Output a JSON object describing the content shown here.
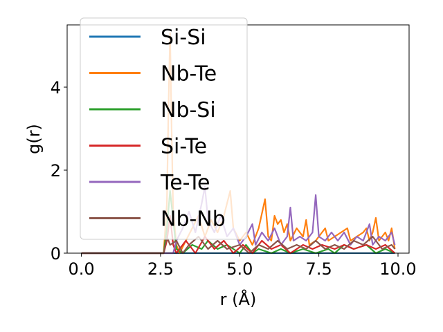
{
  "chart_data": {
    "type": "line",
    "xlabel": "r (Å)",
    "ylabel": "g(r)",
    "xlim": [
      -0.45,
      10.35
    ],
    "ylim": [
      0,
      5.5
    ],
    "xticks": [
      0.0,
      2.5,
      5.0,
      7.5,
      10.0
    ],
    "xtick_labels": [
      "0.0",
      "2.5",
      "5.0",
      "7.5",
      "10.0"
    ],
    "yticks": [
      0,
      2,
      4
    ],
    "ytick_labels": [
      "0",
      "2",
      "4"
    ],
    "grid": false,
    "legend_position": "upper-left",
    "series": [
      {
        "name": "Si-Si",
        "color": "#1f77b4",
        "points": [
          [
            0,
            0
          ],
          [
            2.7,
            0
          ],
          [
            3.0,
            0
          ],
          [
            3.5,
            0
          ],
          [
            4.0,
            0
          ],
          [
            4.5,
            0
          ],
          [
            5.0,
            0
          ],
          [
            5.5,
            0
          ],
          [
            6.0,
            0
          ],
          [
            6.5,
            0
          ],
          [
            7.0,
            0
          ],
          [
            7.5,
            0
          ],
          [
            8.0,
            0
          ],
          [
            8.5,
            0
          ],
          [
            9.0,
            0
          ],
          [
            9.5,
            0
          ],
          [
            9.9,
            0
          ]
        ]
      },
      {
        "name": "Nb-Te",
        "color": "#ff7f0e",
        "points": [
          [
            0,
            0
          ],
          [
            2.6,
            0
          ],
          [
            2.7,
            1.2
          ],
          [
            2.75,
            3.5
          ],
          [
            2.8,
            5.3
          ],
          [
            2.85,
            3.0
          ],
          [
            2.9,
            1.0
          ],
          [
            3.0,
            0.2
          ],
          [
            3.1,
            0
          ],
          [
            3.3,
            0.3
          ],
          [
            3.5,
            0.6
          ],
          [
            3.7,
            0.9
          ],
          [
            3.9,
            0.4
          ],
          [
            4.1,
            0.8
          ],
          [
            4.3,
            0.5
          ],
          [
            4.5,
            0.9
          ],
          [
            4.7,
            1.5
          ],
          [
            4.8,
            0.6
          ],
          [
            5.0,
            0.3
          ],
          [
            5.2,
            0.5
          ],
          [
            5.4,
            0.2
          ],
          [
            5.6,
            0.6
          ],
          [
            5.8,
            1.3
          ],
          [
            5.9,
            0.4
          ],
          [
            6.0,
            0.3
          ],
          [
            6.1,
            0.9
          ],
          [
            6.2,
            0.7
          ],
          [
            6.3,
            0.8
          ],
          [
            6.4,
            0.5
          ],
          [
            6.5,
            0.7
          ],
          [
            6.6,
            0.3
          ],
          [
            6.8,
            0.6
          ],
          [
            7.0,
            0.4
          ],
          [
            7.1,
            0.8
          ],
          [
            7.2,
            0.2
          ],
          [
            7.4,
            0.3
          ],
          [
            7.6,
            0.5
          ],
          [
            7.7,
            0.6
          ],
          [
            7.8,
            0.3
          ],
          [
            8.0,
            0.4
          ],
          [
            8.2,
            0.5
          ],
          [
            8.4,
            0.6
          ],
          [
            8.5,
            0.3
          ],
          [
            8.7,
            0.4
          ],
          [
            8.9,
            0.5
          ],
          [
            9.0,
            0.6
          ],
          [
            9.1,
            0.3
          ],
          [
            9.2,
            0.5
          ],
          [
            9.3,
            0.85
          ],
          [
            9.4,
            0.3
          ],
          [
            9.5,
            0.4
          ],
          [
            9.6,
            0.5
          ],
          [
            9.7,
            0.3
          ],
          [
            9.8,
            0.6
          ],
          [
            9.9,
            0.1
          ]
        ]
      },
      {
        "name": "Nb-Si",
        "color": "#2ca02c",
        "points": [
          [
            0,
            0
          ],
          [
            2.6,
            0
          ],
          [
            2.7,
            0.6
          ],
          [
            2.8,
            1.5
          ],
          [
            2.9,
            0.8
          ],
          [
            3.0,
            0.1
          ],
          [
            3.2,
            0
          ],
          [
            3.5,
            0.2
          ],
          [
            3.8,
            0.1
          ],
          [
            4.0,
            0.3
          ],
          [
            4.3,
            0.1
          ],
          [
            4.6,
            0.2
          ],
          [
            5.0,
            0
          ],
          [
            5.2,
            0.2
          ],
          [
            5.4,
            0
          ],
          [
            5.6,
            0.1
          ],
          [
            6.0,
            0
          ],
          [
            6.3,
            0.1
          ],
          [
            6.6,
            0
          ],
          [
            7.0,
            0.1
          ],
          [
            7.4,
            0
          ],
          [
            7.8,
            0.1
          ],
          [
            8.0,
            0
          ],
          [
            8.3,
            0.2
          ],
          [
            8.6,
            0.1
          ],
          [
            9.0,
            0.2
          ],
          [
            9.3,
            0
          ],
          [
            9.6,
            0.1
          ],
          [
            9.9,
            0
          ]
        ]
      },
      {
        "name": "Si-Te",
        "color": "#d62728",
        "points": [
          [
            0,
            0
          ],
          [
            2.6,
            0
          ],
          [
            2.7,
            0.3
          ],
          [
            2.8,
            0.9
          ],
          [
            2.9,
            0.2
          ],
          [
            3.0,
            0
          ],
          [
            3.3,
            0.3
          ],
          [
            3.6,
            0
          ],
          [
            3.9,
            0.4
          ],
          [
            4.2,
            0.1
          ],
          [
            4.5,
            0.3
          ],
          [
            4.8,
            0
          ],
          [
            5.1,
            0.2
          ],
          [
            5.4,
            0
          ],
          [
            5.7,
            0.3
          ],
          [
            6.0,
            0.1
          ],
          [
            6.3,
            0.2
          ],
          [
            6.6,
            0
          ],
          [
            7.0,
            0.2
          ],
          [
            7.3,
            0.1
          ],
          [
            7.6,
            0.2
          ],
          [
            8.0,
            0.1
          ],
          [
            8.3,
            0.2
          ],
          [
            8.6,
            0.1
          ],
          [
            9.0,
            0.2
          ],
          [
            9.3,
            0.1
          ],
          [
            9.6,
            0.2
          ],
          [
            9.9,
            0
          ]
        ]
      },
      {
        "name": "Te-Te",
        "color": "#9467bd",
        "points": [
          [
            0,
            0
          ],
          [
            2.9,
            0
          ],
          [
            3.0,
            0.3
          ],
          [
            3.2,
            0.6
          ],
          [
            3.4,
            1.0
          ],
          [
            3.6,
            0.5
          ],
          [
            3.8,
            1.2
          ],
          [
            3.9,
            1.6
          ],
          [
            4.0,
            0.8
          ],
          [
            4.2,
            0.5
          ],
          [
            4.4,
            0.9
          ],
          [
            4.6,
            0.4
          ],
          [
            4.8,
            0.6
          ],
          [
            5.0,
            0.2
          ],
          [
            5.2,
            0.4
          ],
          [
            5.4,
            0.7
          ],
          [
            5.5,
            0.2
          ],
          [
            5.7,
            0.5
          ],
          [
            5.9,
            0.3
          ],
          [
            6.1,
            0.6
          ],
          [
            6.3,
            0.2
          ],
          [
            6.5,
            0.4
          ],
          [
            6.6,
            1.1
          ],
          [
            6.7,
            0.3
          ],
          [
            6.9,
            0.4
          ],
          [
            7.1,
            0.3
          ],
          [
            7.3,
            0.5
          ],
          [
            7.4,
            1.4
          ],
          [
            7.5,
            0.4
          ],
          [
            7.7,
            0.3
          ],
          [
            7.9,
            0.5
          ],
          [
            8.1,
            0.3
          ],
          [
            8.3,
            0.5
          ],
          [
            8.5,
            0.2
          ],
          [
            8.7,
            0.4
          ],
          [
            8.9,
            0.3
          ],
          [
            9.1,
            0.7
          ],
          [
            9.2,
            0.2
          ],
          [
            9.4,
            0.4
          ],
          [
            9.6,
            0.3
          ],
          [
            9.8,
            0.5
          ],
          [
            9.9,
            0.2
          ]
        ]
      },
      {
        "name": "Nb-Nb",
        "color": "#8c564b",
        "points": [
          [
            0,
            0
          ],
          [
            2.6,
            0
          ],
          [
            2.7,
            0.4
          ],
          [
            2.8,
            0.2
          ],
          [
            3.0,
            0.3
          ],
          [
            3.2,
            0
          ],
          [
            3.4,
            0.2
          ],
          [
            3.7,
            0.4
          ],
          [
            4.0,
            0.1
          ],
          [
            4.3,
            0.3
          ],
          [
            4.6,
            0.1
          ],
          [
            5.0,
            0.2
          ],
          [
            5.3,
            0
          ],
          [
            5.6,
            0.2
          ],
          [
            5.9,
            0.1
          ],
          [
            6.2,
            0.3
          ],
          [
            6.5,
            0.1
          ],
          [
            6.8,
            0.2
          ],
          [
            7.1,
            0.1
          ],
          [
            7.4,
            0.3
          ],
          [
            7.7,
            0.1
          ],
          [
            8.0,
            0.2
          ],
          [
            8.3,
            0.1
          ],
          [
            8.6,
            0.3
          ],
          [
            8.9,
            0.2
          ],
          [
            9.2,
            0.4
          ],
          [
            9.5,
            0.1
          ],
          [
            9.8,
            0.2
          ],
          [
            9.9,
            0.1
          ]
        ]
      }
    ]
  }
}
